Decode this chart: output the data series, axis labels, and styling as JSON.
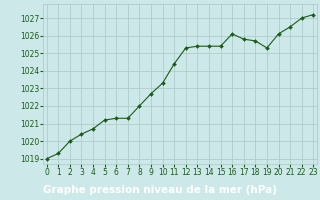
{
  "x": [
    0,
    1,
    2,
    3,
    4,
    5,
    6,
    7,
    8,
    9,
    10,
    11,
    12,
    13,
    14,
    15,
    16,
    17,
    18,
    19,
    20,
    21,
    22,
    23
  ],
  "y": [
    1019.0,
    1019.3,
    1020.0,
    1020.4,
    1020.7,
    1021.2,
    1021.3,
    1021.3,
    1022.0,
    1022.7,
    1023.3,
    1024.4,
    1025.3,
    1025.4,
    1025.4,
    1025.4,
    1026.1,
    1025.8,
    1025.7,
    1025.3,
    1026.1,
    1026.5,
    1027.0,
    1027.2
  ],
  "line_color": "#1a5c1a",
  "marker": "D",
  "marker_size": 2.0,
  "bg_color": "#cce8e8",
  "grid_color": "#aac8c8",
  "xlabel": "Graphe pression niveau de la mer (hPa)",
  "xlabel_fontsize": 7.5,
  "xlabel_color": "#ffffff",
  "xlabel_bg": "#2d6e2d",
  "tick_color": "#1a5c1a",
  "ylim": [
    1018.7,
    1027.8
  ],
  "yticks": [
    1019,
    1020,
    1021,
    1022,
    1023,
    1024,
    1025,
    1026,
    1027
  ],
  "xlim": [
    -0.3,
    23.3
  ],
  "xticks": [
    0,
    1,
    2,
    3,
    4,
    5,
    6,
    7,
    8,
    9,
    10,
    11,
    12,
    13,
    14,
    15,
    16,
    17,
    18,
    19,
    20,
    21,
    22,
    23
  ],
  "tick_fontsize": 5.5,
  "line_width": 0.8
}
